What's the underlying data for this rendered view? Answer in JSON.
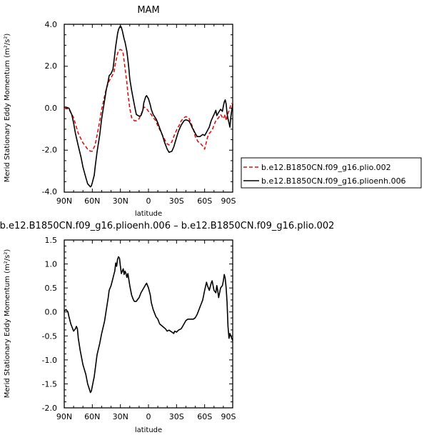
{
  "chart_data": [
    {
      "type": "line",
      "title": "MAM",
      "xlabel": "latitude",
      "ylabel": "Merid Stationary Eddy Momentum (m²/s²)",
      "xlim": [
        90,
        -90
      ],
      "ylim": [
        -4.0,
        4.0
      ],
      "x_ticks": [
        "90N",
        "60N",
        "30N",
        "0",
        "30S",
        "60S",
        "90S"
      ],
      "y_ticks": [
        "-4.0",
        "-2.0",
        "0.0",
        "2.0",
        "4.0"
      ],
      "grid": false,
      "legend_position": "right",
      "series": [
        {
          "name": "b.e12.B1850CN.f09_g16.plio.002",
          "color": "#dd1111",
          "dash": "dashed",
          "x": [
            90,
            85,
            80,
            75,
            70,
            65,
            62,
            60,
            57,
            55,
            52,
            50,
            47,
            45,
            42,
            40,
            37,
            35,
            33,
            32,
            30,
            28,
            27,
            25,
            23,
            22,
            20,
            18,
            15,
            13,
            10,
            7,
            5,
            3,
            2,
            0,
            -3,
            -5,
            -8,
            -10,
            -13,
            -15,
            -18,
            -20,
            -22,
            -25,
            -27,
            -30,
            -33,
            -35,
            -38,
            -40,
            -43,
            -45,
            -48,
            -50,
            -53,
            -55,
            -58,
            -60,
            -63,
            -65,
            -68,
            -70,
            -72,
            -75,
            -77,
            -80,
            -82,
            -83,
            -85,
            -87,
            -88,
            -90
          ],
          "y": [
            0,
            -0.05,
            -0.45,
            -1.2,
            -1.65,
            -1.95,
            -2.05,
            -2.05,
            -1.75,
            -1.3,
            -0.6,
            -0.05,
            0.55,
            0.95,
            1.3,
            1.45,
            1.7,
            2.2,
            2.6,
            2.75,
            2.8,
            2.75,
            2.6,
            1.9,
            1.2,
            0.7,
            0,
            -0.45,
            -0.6,
            -0.6,
            -0.5,
            -0.2,
            0.05,
            0.02,
            -0.02,
            -0.15,
            -0.3,
            -0.45,
            -0.6,
            -0.85,
            -1.1,
            -1.3,
            -1.55,
            -1.7,
            -1.75,
            -1.6,
            -1.35,
            -1.05,
            -0.8,
            -0.6,
            -0.45,
            -0.4,
            -0.45,
            -0.65,
            -1.0,
            -1.35,
            -1.6,
            -1.65,
            -1.8,
            -1.95,
            -1.4,
            -1.2,
            -1.05,
            -0.8,
            -0.6,
            -0.45,
            -0.3,
            -0.5,
            -0.3,
            -0.6,
            -0.25,
            0.0,
            0.2,
            0.25
          ]
        },
        {
          "name": "b.e12.B1850CN.f09_g16.plioenh.006",
          "color": "#000000",
          "dash": "solid",
          "x": [
            90,
            88,
            85,
            82,
            80,
            78,
            75,
            72,
            70,
            67,
            65,
            63,
            62,
            61,
            60,
            58,
            57,
            55,
            52,
            50,
            47,
            45,
            43,
            42,
            40,
            38,
            37,
            35,
            33,
            32,
            31,
            30,
            29,
            28,
            27,
            26,
            25,
            23,
            22,
            21,
            20,
            18,
            15,
            13,
            10,
            8,
            6,
            5,
            3,
            2,
            0,
            -2,
            -3,
            -5,
            -8,
            -10,
            -12,
            -15,
            -17,
            -20,
            -22,
            -25,
            -27,
            -28,
            -30,
            -32,
            -35,
            -38,
            -40,
            -43,
            -45,
            -47,
            -50,
            -52,
            -55,
            -58,
            -60,
            -62,
            -65,
            -67,
            -70,
            -72,
            -73,
            -75,
            -77,
            -79,
            -80,
            -81,
            -82,
            -83,
            -84,
            -85,
            -86,
            -87,
            -88,
            -90
          ],
          "y": [
            0.05,
            0.05,
            0.0,
            -0.3,
            -0.7,
            -1.2,
            -1.8,
            -2.35,
            -2.8,
            -3.3,
            -3.6,
            -3.7,
            -3.75,
            -3.7,
            -3.55,
            -3.2,
            -2.8,
            -2.1,
            -1.25,
            -0.5,
            0.35,
            0.9,
            1.3,
            1.55,
            1.65,
            1.85,
            2.2,
            2.95,
            3.55,
            3.75,
            3.85,
            3.92,
            3.85,
            3.7,
            3.5,
            3.3,
            3.15,
            2.7,
            2.3,
            1.9,
            1.4,
            0.85,
            0.15,
            -0.3,
            -0.38,
            -0.35,
            -0.1,
            0.25,
            0.55,
            0.6,
            0.45,
            0.15,
            -0.05,
            -0.3,
            -0.5,
            -0.7,
            -0.95,
            -1.3,
            -1.6,
            -1.95,
            -2.1,
            -2.05,
            -1.85,
            -1.7,
            -1.4,
            -1.1,
            -0.8,
            -0.6,
            -0.55,
            -0.6,
            -0.75,
            -0.95,
            -1.2,
            -1.35,
            -1.35,
            -1.25,
            -1.3,
            -1.15,
            -0.9,
            -0.6,
            -0.3,
            -0.1,
            -0.35,
            -0.2,
            -0.05,
            -0.15,
            0.1,
            0.3,
            0.4,
            0.2,
            -0.25,
            -0.5,
            -0.7,
            -0.9,
            -0.4,
            0.2
          ]
        }
      ]
    },
    {
      "type": "line",
      "title": "b.e12.B1850CN.f09_g16.plioenh.006 – b.e12.B1850CN.f09_g16.plio.002",
      "xlabel": "latitude",
      "ylabel": "Merid Stationary Eddy Momentum (m²/s²)",
      "xlim": [
        90,
        -90
      ],
      "ylim": [
        -2.0,
        1.5
      ],
      "x_ticks": [
        "90N",
        "60N",
        "30N",
        "0",
        "30S",
        "60S",
        "90S"
      ],
      "y_ticks": [
        "-2.0",
        "-1.5",
        "-1.0",
        "-0.5",
        "0.0",
        "0.5",
        "1.0",
        "1.5"
      ],
      "grid": false,
      "series": [
        {
          "color": "#000000",
          "dash": "solid",
          "x": [
            90,
            88,
            86,
            85,
            83,
            80,
            78,
            77,
            76,
            75,
            73,
            70,
            67,
            65,
            63,
            62,
            61,
            60,
            59,
            58,
            57,
            55,
            52,
            50,
            47,
            45,
            43,
            42,
            40,
            38,
            37,
            36,
            35,
            34,
            33,
            32,
            31,
            30,
            29,
            28,
            27,
            26,
            25,
            24,
            23,
            22,
            20,
            18,
            16,
            15,
            13,
            12,
            10,
            8,
            5,
            3,
            2,
            0,
            -2,
            -3,
            -5,
            -8,
            -10,
            -12,
            -15,
            -18,
            -20,
            -22,
            -25,
            -27,
            -28,
            -30,
            -32,
            -35,
            -38,
            -40,
            -42,
            -45,
            -48,
            -50,
            -52,
            -55,
            -58,
            -60,
            -62,
            -63,
            -65,
            -67,
            -68,
            -70,
            -72,
            -73,
            -74,
            -75,
            -77,
            -79,
            -80,
            -81,
            -82,
            -83,
            -84,
            -85,
            -86,
            -87,
            -88,
            -90
          ],
          "y": [
            0.02,
            0.05,
            0.0,
            -0.1,
            -0.25,
            -0.4,
            -0.35,
            -0.3,
            -0.35,
            -0.55,
            -0.8,
            -1.1,
            -1.3,
            -1.5,
            -1.62,
            -1.68,
            -1.65,
            -1.55,
            -1.45,
            -1.35,
            -1.2,
            -0.9,
            -0.65,
            -0.45,
            -0.2,
            0.05,
            0.3,
            0.45,
            0.55,
            0.7,
            0.78,
            0.85,
            1.02,
            0.95,
            1.1,
            1.15,
            1.12,
            0.95,
            0.8,
            0.85,
            0.9,
            0.78,
            0.85,
            0.8,
            0.72,
            0.8,
            0.55,
            0.35,
            0.25,
            0.22,
            0.22,
            0.25,
            0.3,
            0.4,
            0.5,
            0.57,
            0.6,
            0.5,
            0.35,
            0.2,
            0.05,
            -0.1,
            -0.15,
            -0.25,
            -0.3,
            -0.35,
            -0.4,
            -0.38,
            -0.42,
            -0.45,
            -0.4,
            -0.42,
            -0.38,
            -0.35,
            -0.25,
            -0.18,
            -0.15,
            -0.15,
            -0.15,
            -0.12,
            -0.05,
            0.1,
            0.25,
            0.45,
            0.62,
            0.55,
            0.45,
            0.6,
            0.65,
            0.45,
            0.4,
            0.55,
            0.45,
            0.3,
            0.5,
            0.55,
            0.65,
            0.78,
            0.7,
            0.5,
            0.2,
            -0.3,
            -0.55,
            -0.45,
            -0.5,
            -0.6
          ]
        }
      ]
    }
  ]
}
